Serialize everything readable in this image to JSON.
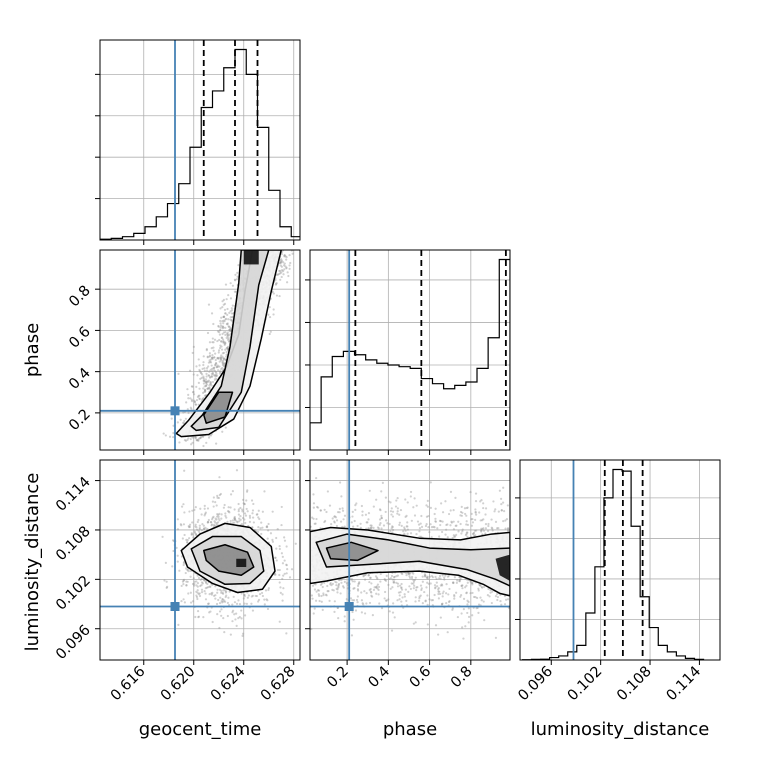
{
  "chart_data": {
    "type": "corner",
    "parameters": [
      {
        "name": "geocent_time",
        "label": "geocent_time",
        "range": [
          0.6125,
          0.6285
        ],
        "ticks": [
          "0.616",
          "0.620",
          "0.624",
          "0.628"
        ],
        "tick_values": [
          0.616,
          0.62,
          0.624,
          0.628
        ],
        "truth": 0.6185,
        "quantiles": [
          0.6208,
          0.6233,
          0.6251
        ]
      },
      {
        "name": "phase",
        "label": "phase",
        "range": [
          0.02,
          0.99
        ],
        "ticks": [
          "0.2",
          "0.4",
          "0.6",
          "0.8"
        ],
        "tick_values": [
          0.2,
          0.4,
          0.6,
          0.8
        ],
        "truth": 0.21,
        "quantiles": [
          0.24,
          0.56,
          0.97
        ]
      },
      {
        "name": "luminosity_distance",
        "label": "luminosity_distance",
        "range": [
          0.0922,
          0.1165
        ],
        "ticks": [
          "0.096",
          "0.102",
          "0.108",
          "0.114"
        ],
        "tick_values": [
          0.096,
          0.102,
          0.108,
          0.114
        ],
        "truth": 0.0987,
        "quantiles": [
          0.1025,
          0.1047,
          0.1071
        ]
      }
    ],
    "histograms": [
      {
        "param": "geocent_time",
        "bin_edges": [
          0.6125,
          0.6134,
          0.6143,
          0.6152,
          0.6161,
          0.617,
          0.6179,
          0.6188,
          0.6197,
          0.6206,
          0.6215,
          0.6224,
          0.6233,
          0.6242,
          0.6251,
          0.626,
          0.6269,
          0.6278,
          0.6287
        ],
        "counts": [
          0.5,
          1,
          2,
          4,
          8,
          14,
          22,
          34,
          56,
          80,
          90,
          104,
          115,
          100,
          68,
          30,
          8,
          2
        ]
      },
      {
        "param": "phase",
        "bin_edges": [
          0.02,
          0.074,
          0.128,
          0.182,
          0.236,
          0.29,
          0.344,
          0.398,
          0.452,
          0.506,
          0.56,
          0.614,
          0.668,
          0.722,
          0.776,
          0.83,
          0.884,
          0.938,
          0.99
        ],
        "counts": [
          16,
          43,
          55,
          58,
          56,
          53,
          51,
          50,
          49,
          48,
          42,
          39,
          36,
          38,
          40,
          48,
          66,
          112
        ]
      },
      {
        "param": "luminosity_distance",
        "bin_edges": [
          0.0925,
          0.0936,
          0.0947,
          0.0958,
          0.0969,
          0.098,
          0.0991,
          0.1002,
          0.1013,
          0.1024,
          0.1035,
          0.1046,
          0.1057,
          0.1068,
          0.1079,
          0.109,
          0.1101,
          0.1112,
          0.1123,
          0.1134,
          0.1145
        ],
        "counts": [
          0.3,
          0.8,
          1,
          3,
          5,
          10,
          18,
          58,
          115,
          200,
          235,
          233,
          165,
          78,
          40,
          18,
          10,
          5,
          2,
          0.8
        ]
      }
    ],
    "pair_contours": [
      {
        "x": "geocent_time",
        "y": "phase",
        "levels": [
          [
            [
              0.619,
              0.085
            ],
            [
              0.6212,
              0.095
            ],
            [
              0.6232,
              0.17
            ],
            [
              0.6245,
              0.33
            ],
            [
              0.6254,
              0.56
            ],
            [
              0.6262,
              0.79
            ],
            [
              0.627,
              0.99
            ],
            [
              0.6247,
              0.99
            ],
            [
              0.6241,
              0.79
            ],
            [
              0.6236,
              0.58
            ],
            [
              0.6226,
              0.42
            ],
            [
              0.6213,
              0.3
            ],
            [
              0.6196,
              0.165
            ],
            [
              0.6186,
              0.1
            ]
          ],
          [
            [
              0.6202,
              0.115
            ],
            [
              0.622,
              0.13
            ],
            [
              0.6238,
              0.3
            ],
            [
              0.6245,
              0.52
            ],
            [
              0.6252,
              0.82
            ],
            [
              0.626,
              0.99
            ],
            [
              0.6238,
              0.99
            ],
            [
              0.6236,
              0.83
            ],
            [
              0.6229,
              0.52
            ],
            [
              0.6222,
              0.33
            ],
            [
              0.6207,
              0.19
            ],
            [
              0.6198,
              0.135
            ]
          ],
          [
            [
              0.621,
              0.15
            ],
            [
              0.6225,
              0.18
            ],
            [
              0.6231,
              0.3
            ],
            [
              0.622,
              0.3
            ],
            [
              0.6208,
              0.19
            ]
          ],
          [
            [
              0.624,
              0.92
            ],
            [
              0.6252,
              0.92
            ],
            [
              0.6252,
              0.99
            ],
            [
              0.624,
              0.99
            ]
          ]
        ]
      },
      {
        "x": "geocent_time",
        "y": "luminosity_distance",
        "levels": [
          [
            [
              0.619,
              0.1055
            ],
            [
              0.6205,
              0.1075
            ],
            [
              0.6225,
              0.1088
            ],
            [
              0.6245,
              0.1083
            ],
            [
              0.6262,
              0.106
            ],
            [
              0.6265,
              0.103
            ],
            [
              0.6255,
              0.1008
            ],
            [
              0.6235,
              0.1004
            ],
            [
              0.6215,
              0.1015
            ],
            [
              0.6195,
              0.1035
            ]
          ],
          [
            [
              0.6198,
              0.1057
            ],
            [
              0.6215,
              0.1072
            ],
            [
              0.6238,
              0.1072
            ],
            [
              0.6253,
              0.1055
            ],
            [
              0.6256,
              0.103
            ],
            [
              0.6245,
              0.1015
            ],
            [
              0.6225,
              0.1014
            ],
            [
              0.6205,
              0.103
            ]
          ],
          [
            [
              0.6208,
              0.1055
            ],
            [
              0.6225,
              0.1062
            ],
            [
              0.6243,
              0.1053
            ],
            [
              0.6248,
              0.1035
            ],
            [
              0.6238,
              0.1025
            ],
            [
              0.622,
              0.103
            ],
            [
              0.621,
              0.1043
            ]
          ],
          [
            [
              0.6234,
              0.1045
            ],
            [
              0.6242,
              0.1045
            ],
            [
              0.6242,
              0.1035
            ],
            [
              0.6234,
              0.1035
            ]
          ]
        ]
      },
      {
        "x": "phase",
        "y": "luminosity_distance",
        "levels": [
          [
            [
              0.02,
              0.1078
            ],
            [
              0.12,
              0.1083
            ],
            [
              0.3,
              0.108
            ],
            [
              0.55,
              0.107
            ],
            [
              0.75,
              0.1068
            ],
            [
              0.9,
              0.1075
            ],
            [
              0.99,
              0.1077
            ],
            [
              0.99,
              0.1
            ],
            [
              0.94,
              0.1003
            ],
            [
              0.86,
              0.1014
            ],
            [
              0.74,
              0.1025
            ],
            [
              0.55,
              0.103
            ],
            [
              0.3,
              0.1028
            ],
            [
              0.1,
              0.1018
            ],
            [
              0.02,
              0.1015
            ]
          ],
          [
            [
              0.05,
              0.1065
            ],
            [
              0.2,
              0.1075
            ],
            [
              0.4,
              0.1068
            ],
            [
              0.6,
              0.1058
            ],
            [
              0.8,
              0.1056
            ],
            [
              0.99,
              0.1058
            ],
            [
              0.99,
              0.1012
            ],
            [
              0.92,
              0.102
            ],
            [
              0.78,
              0.1032
            ],
            [
              0.55,
              0.1042
            ],
            [
              0.3,
              0.1038
            ],
            [
              0.1,
              0.1035
            ]
          ],
          [
            [
              0.1,
              0.1058
            ],
            [
              0.22,
              0.1065
            ],
            [
              0.35,
              0.1055
            ],
            [
              0.25,
              0.1043
            ],
            [
              0.12,
              0.1045
            ]
          ],
          [
            [
              0.92,
              0.1045
            ],
            [
              0.99,
              0.105
            ],
            [
              0.99,
              0.1018
            ],
            [
              0.94,
              0.1025
            ]
          ]
        ]
      }
    ],
    "colors": {
      "truth": "#4682b4",
      "contour": "#000000",
      "grid": "#b0b0b0",
      "scatter": "#9a9a9a"
    },
    "grid": true
  }
}
